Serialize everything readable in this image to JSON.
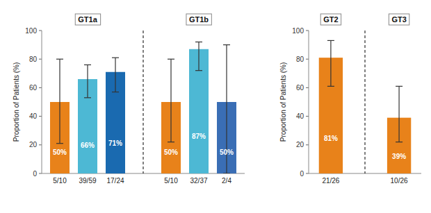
{
  "chart_data": [
    {
      "type": "bar",
      "ylabel": "Proportion of Patients (%)",
      "ylim": [
        0,
        100
      ],
      "yticks": [
        0,
        20,
        40,
        60,
        80,
        100
      ],
      "data_labels": true,
      "panels": [
        {
          "title": "GT1a",
          "categories": [
            "5/10",
            "39/59",
            "17/24"
          ],
          "values": [
            50,
            66,
            71
          ],
          "value_labels": [
            "50%",
            "66%",
            "71%"
          ],
          "colors": [
            "#E8821A",
            "#4DB8D4",
            "#1A6AB0"
          ],
          "error_low": [
            29,
            13,
            14
          ],
          "error_high": [
            30,
            10,
            10
          ]
        },
        {
          "title": "GT1b",
          "categories": [
            "5/10",
            "32/37",
            "2/4"
          ],
          "values": [
            50,
            87,
            50
          ],
          "value_labels": [
            "50%",
            "87%",
            "50%"
          ],
          "colors": [
            "#E8821A",
            "#4DB8D4",
            "#3A6EB5"
          ],
          "error_low": [
            28,
            15,
            50
          ],
          "error_high": [
            30,
            5,
            40
          ]
        }
      ]
    },
    {
      "type": "bar",
      "ylabel": "Proportion of Patients (%)",
      "ylim": [
        0,
        100
      ],
      "yticks": [
        0,
        20,
        40,
        60,
        80,
        100
      ],
      "data_labels": true,
      "panels": [
        {
          "title": "GT2",
          "categories": [
            "21/26"
          ],
          "values": [
            81
          ],
          "value_labels": [
            "81%"
          ],
          "colors": [
            "#E8821A"
          ],
          "error_low": [
            20
          ],
          "error_high": [
            12
          ]
        },
        {
          "title": "GT3",
          "categories": [
            "10/26"
          ],
          "values": [
            39
          ],
          "value_labels": [
            "39%"
          ],
          "colors": [
            "#E8821A"
          ],
          "error_low": [
            17
          ],
          "error_high": [
            22
          ]
        }
      ]
    }
  ]
}
